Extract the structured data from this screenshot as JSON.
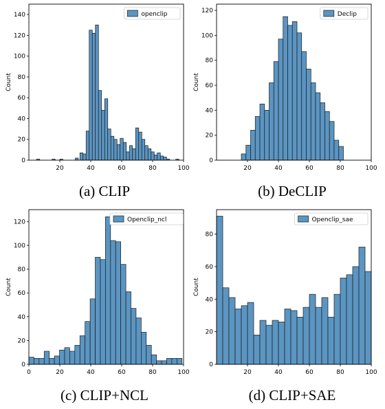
{
  "figure": {
    "captions": [
      "(a) CLIP",
      "(b) DeCLIP",
      "(c) CLIP+NCL",
      "(d) CLIP+SAE"
    ]
  },
  "style": {
    "bar_fill": "#5b95c2",
    "bar_edge": "#1b1b1b",
    "axis_color": "#000000"
  },
  "chart_data": [
    {
      "type": "histogram",
      "title": "",
      "xlabel": "",
      "ylabel": "Count",
      "legend": {
        "entries": [
          "openclip"
        ],
        "placement": "top-right"
      },
      "xlim": [
        0,
        100
      ],
      "ylim": [
        0,
        150
      ],
      "xticks": [
        "20",
        "40",
        "60",
        "80",
        "100"
      ],
      "yticks": [
        "0",
        "20",
        "40",
        "60",
        "80",
        "100",
        "120",
        "140"
      ],
      "bin_edges": [
        [
          5,
          7
        ],
        [
          15,
          17
        ],
        [
          20,
          22
        ],
        [
          30,
          32
        ],
        [
          33,
          35
        ],
        [
          35,
          37
        ],
        [
          37,
          39
        ],
        [
          39,
          41
        ],
        [
          41,
          43
        ],
        [
          43,
          45
        ],
        [
          45,
          47
        ],
        [
          47,
          49
        ],
        [
          49,
          51
        ],
        [
          51,
          53
        ],
        [
          53,
          55
        ],
        [
          55,
          57
        ],
        [
          57,
          59
        ],
        [
          59,
          61
        ],
        [
          61,
          63
        ],
        [
          63,
          65
        ],
        [
          65,
          67
        ],
        [
          67,
          69
        ],
        [
          69,
          71
        ],
        [
          71,
          73
        ],
        [
          73,
          75
        ],
        [
          75,
          77
        ],
        [
          77,
          79
        ],
        [
          79,
          81
        ],
        [
          81,
          83
        ],
        [
          83,
          85
        ],
        [
          85,
          87
        ],
        [
          87,
          89
        ],
        [
          89,
          91
        ],
        [
          95,
          97
        ]
      ],
      "values": [
        1,
        1,
        1,
        2,
        7,
        6,
        28,
        125,
        122,
        130,
        67,
        48,
        59,
        30,
        23,
        20,
        15,
        21,
        17,
        8,
        14,
        11,
        31,
        27,
        20,
        14,
        11,
        8,
        5,
        7,
        4,
        3,
        1,
        1
      ]
    },
    {
      "type": "histogram",
      "title": "",
      "xlabel": "",
      "ylabel": "Count",
      "legend": {
        "entries": [
          "Declip"
        ],
        "placement": "top-right"
      },
      "xlim": [
        0,
        100
      ],
      "ylim": [
        0,
        125
      ],
      "xticks": [
        "20",
        "40",
        "60",
        "80",
        "100"
      ],
      "yticks": [
        "0",
        "20",
        "40",
        "60",
        "80",
        "100",
        "120"
      ],
      "bin_edges": [
        [
          16,
          19
        ],
        [
          19,
          22
        ],
        [
          22,
          25
        ],
        [
          25,
          28
        ],
        [
          28,
          31
        ],
        [
          31,
          34
        ],
        [
          34,
          37
        ],
        [
          37,
          40
        ],
        [
          40,
          43
        ],
        [
          43,
          46
        ],
        [
          46,
          49
        ],
        [
          49,
          52
        ],
        [
          52,
          55
        ],
        [
          55,
          58
        ],
        [
          58,
          61
        ],
        [
          61,
          64
        ],
        [
          64,
          67
        ],
        [
          67,
          70
        ],
        [
          70,
          73
        ],
        [
          73,
          76
        ],
        [
          76,
          79
        ],
        [
          79,
          82
        ]
      ],
      "values": [
        5,
        12,
        24,
        35,
        45,
        40,
        62,
        79,
        97,
        115,
        108,
        111,
        102,
        87,
        73,
        62,
        54,
        46,
        39,
        31,
        16,
        11
      ]
    },
    {
      "type": "histogram",
      "title": "",
      "xlabel": "",
      "ylabel": "Count",
      "legend": {
        "entries": [
          "Openclip_ncl"
        ],
        "placement": "top-left"
      },
      "xlim": [
        0,
        100
      ],
      "ylim": [
        0,
        130
      ],
      "xticks": [
        "0",
        "20",
        "40",
        "60",
        "80",
        "100"
      ],
      "yticks": [
        "0",
        "20",
        "40",
        "60",
        "80",
        "100",
        "120"
      ],
      "bin_edges": [
        [
          0,
          3.3
        ],
        [
          3.3,
          6.6
        ],
        [
          6.6,
          9.9
        ],
        [
          9.9,
          13.2
        ],
        [
          13.2,
          16.5
        ],
        [
          16.5,
          19.8
        ],
        [
          19.8,
          23.1
        ],
        [
          23.1,
          26.4
        ],
        [
          26.4,
          29.7
        ],
        [
          29.7,
          33
        ],
        [
          33,
          36.3
        ],
        [
          36.3,
          39.6
        ],
        [
          39.6,
          42.9
        ],
        [
          42.9,
          46.2
        ],
        [
          46.2,
          49.5
        ],
        [
          49.5,
          52.8
        ],
        [
          52.8,
          56.1
        ],
        [
          56.1,
          59.4
        ],
        [
          59.4,
          62.7
        ],
        [
          62.7,
          66
        ],
        [
          66,
          69.3
        ],
        [
          69.3,
          72.6
        ],
        [
          72.6,
          75.9
        ],
        [
          75.9,
          79.2
        ],
        [
          79.2,
          82.5
        ],
        [
          82.5,
          85.8
        ],
        [
          85.8,
          89.1
        ],
        [
          89.1,
          92.4
        ],
        [
          92.4,
          95.7
        ],
        [
          95.7,
          99
        ]
      ],
      "values": [
        6,
        5,
        5,
        11,
        5,
        7,
        12,
        14,
        11,
        16,
        24,
        36,
        55,
        90,
        88,
        124,
        104,
        103,
        84,
        61,
        47,
        39,
        27,
        16,
        8,
        3,
        3,
        5,
        5,
        5
      ]
    },
    {
      "type": "histogram",
      "title": "",
      "xlabel": "",
      "ylabel": "Count",
      "legend": {
        "entries": [
          "Openclip_sae"
        ],
        "placement": "top-right"
      },
      "xlim": [
        0,
        100
      ],
      "ylim": [
        0,
        95
      ],
      "xticks": [
        "20",
        "40",
        "60",
        "80",
        "100"
      ],
      "yticks": [
        "0",
        "20",
        "40",
        "60",
        "80"
      ],
      "bin_edges": [
        [
          0,
          4
        ],
        [
          4,
          8
        ],
        [
          8,
          12
        ],
        [
          12,
          16
        ],
        [
          16,
          20
        ],
        [
          20,
          24
        ],
        [
          24,
          28
        ],
        [
          28,
          32
        ],
        [
          32,
          36
        ],
        [
          36,
          40
        ],
        [
          40,
          44
        ],
        [
          44,
          48
        ],
        [
          48,
          52
        ],
        [
          52,
          56
        ],
        [
          56,
          60
        ],
        [
          60,
          64
        ],
        [
          64,
          68
        ],
        [
          68,
          72
        ],
        [
          72,
          76
        ],
        [
          76,
          80
        ],
        [
          80,
          84
        ],
        [
          84,
          88
        ],
        [
          88,
          92
        ],
        [
          92,
          96
        ],
        [
          96,
          100
        ]
      ],
      "values": [
        91,
        47,
        41,
        34,
        36,
        38,
        18,
        27,
        24,
        27,
        26,
        34,
        33,
        29,
        35,
        43,
        35,
        41,
        29,
        43,
        53,
        55,
        60,
        72,
        57
      ]
    }
  ]
}
